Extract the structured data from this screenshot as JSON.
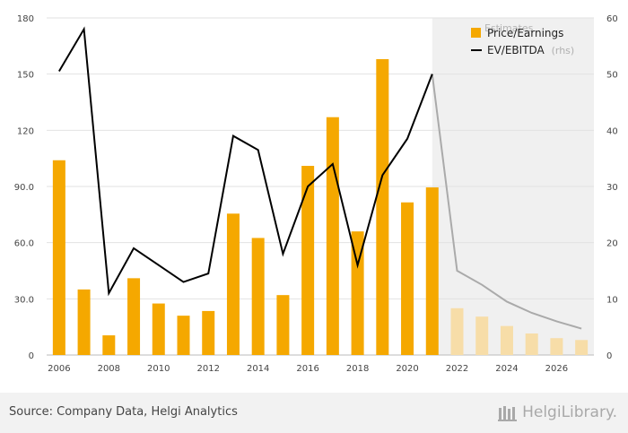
{
  "chart_data": {
    "type": "bar+line",
    "title": "",
    "categories": [
      2006,
      2007,
      2008,
      2009,
      2010,
      2011,
      2012,
      2013,
      2014,
      2015,
      2016,
      2017,
      2018,
      2019,
      2020,
      2021,
      2022,
      2023,
      2024,
      2025,
      2026,
      2027
    ],
    "x_tick_labels": [
      "2006",
      "2008",
      "2010",
      "2012",
      "2014",
      "2016",
      "2018",
      "2020",
      "2022",
      "2024",
      "2026"
    ],
    "estimate_from": 2022,
    "estimate_label": "Estimates",
    "left_axis": {
      "ylim": [
        0,
        180
      ],
      "ticks": [
        "0",
        "30.0",
        "60.0",
        "90.0",
        "120",
        "150",
        "180"
      ]
    },
    "right_axis": {
      "ylim": [
        0,
        60
      ],
      "ticks": [
        "0",
        "10",
        "20",
        "30",
        "40",
        "50",
        "60"
      ]
    },
    "series": [
      {
        "name": "Price/Earnings",
        "type": "bar",
        "axis": "left",
        "color": "#F5A800",
        "estimate_color": "#F7DDA8",
        "values": [
          104,
          35,
          10.5,
          41,
          27.5,
          21,
          23.5,
          75.5,
          62.5,
          32,
          101,
          127,
          66,
          158,
          81.5,
          89.5,
          25,
          20.5,
          15.5,
          11.5,
          9,
          8
        ]
      },
      {
        "name": "EV/EBITDA",
        "name_suffix": "(rhs)",
        "type": "line",
        "axis": "right",
        "color": "#000000",
        "estimate_color": "#AAAAAA",
        "values": [
          50.5,
          58,
          11,
          19,
          16,
          13,
          14.5,
          39,
          36.5,
          18,
          30,
          34,
          16,
          32,
          38.5,
          50,
          15,
          12.5,
          9.5,
          7.5,
          6,
          4.7
        ]
      }
    ],
    "legend_position": "top-right"
  },
  "footer": {
    "source": "Source: Company Data, Helgi Analytics",
    "brand": "HelgiLibrary."
  }
}
